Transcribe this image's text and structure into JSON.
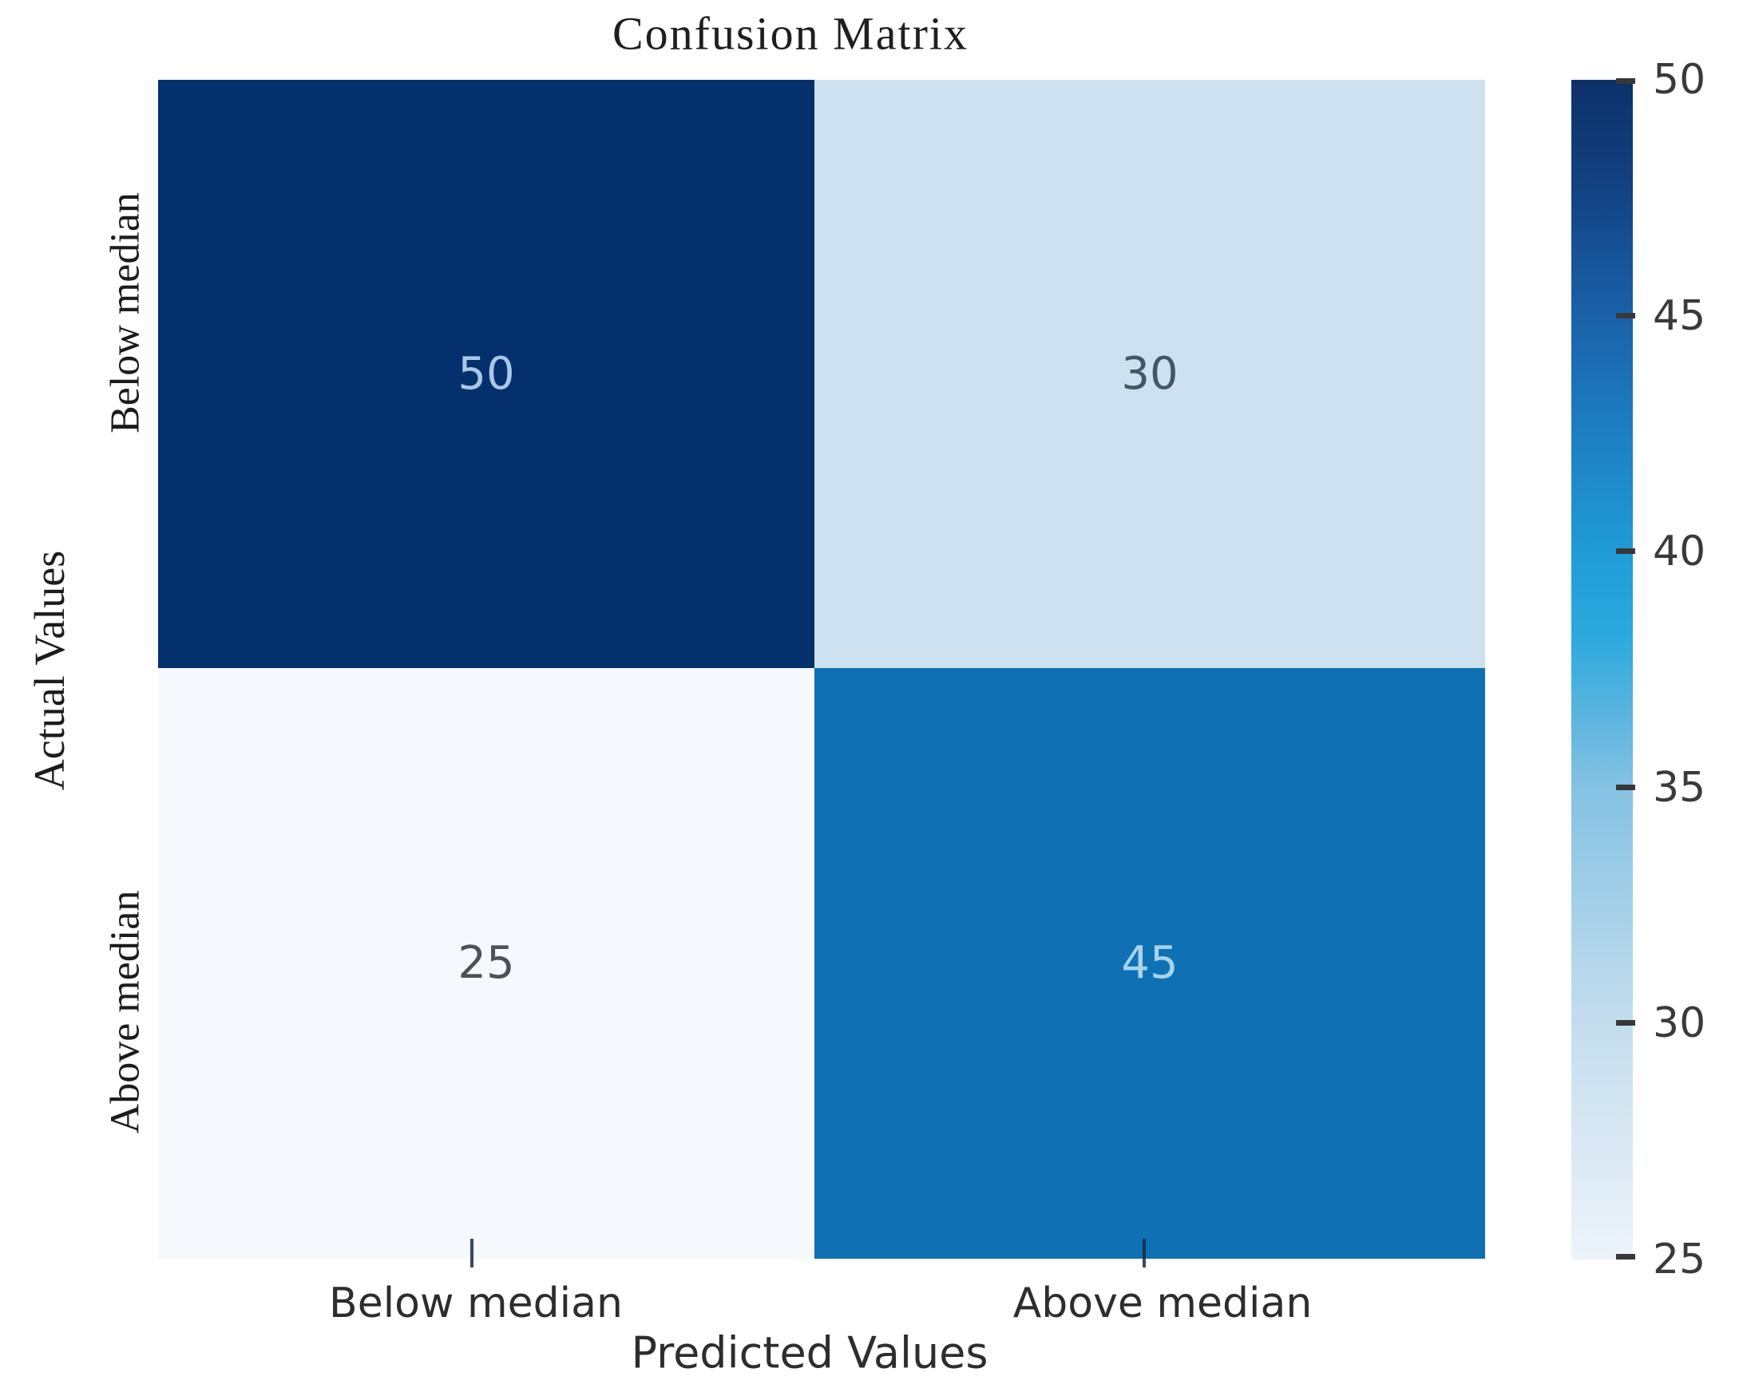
{
  "chart_data": {
    "type": "heatmap",
    "title": "Confusion Matrix",
    "xlabel": "Predicted Values",
    "ylabel": "Actual Values",
    "x_categories": [
      "Below median",
      "Above median"
    ],
    "y_categories": [
      "Below median",
      "Above median"
    ],
    "values": [
      [
        50,
        30
      ],
      [
        25,
        45
      ]
    ],
    "cell_styles": [
      [
        {
          "bg": "#05306e",
          "fg": "#a9c7e7"
        },
        {
          "bg": "#cde1f1",
          "fg": "#3f586a"
        }
      ],
      [
        {
          "bg": "#f5f9fd",
          "fg": "#4c515a"
        },
        {
          "bg": "#1070b4",
          "fg": "#a6d3ee"
        }
      ]
    ],
    "colorbar": {
      "min": 25,
      "max": 50,
      "position": "right",
      "ticks": [
        "50",
        "45",
        "40",
        "35",
        "30",
        "25"
      ],
      "gradient": [
        {
          "pos": 0,
          "color": "#0d3169"
        },
        {
          "pos": 8,
          "color": "#123f7e"
        },
        {
          "pos": 20,
          "color": "#1a61a9"
        },
        {
          "pos": 30,
          "color": "#1d7fc2"
        },
        {
          "pos": 40,
          "color": "#209bd6"
        },
        {
          "pos": 47,
          "color": "#2ba9de"
        },
        {
          "pos": 53,
          "color": "#55b3df"
        },
        {
          "pos": 60,
          "color": "#85c2e3"
        },
        {
          "pos": 80,
          "color": "#c4ddee"
        },
        {
          "pos": 92,
          "color": "#ddeaf5"
        },
        {
          "pos": 100,
          "color": "#ecf4fa"
        }
      ]
    },
    "grid": false
  }
}
